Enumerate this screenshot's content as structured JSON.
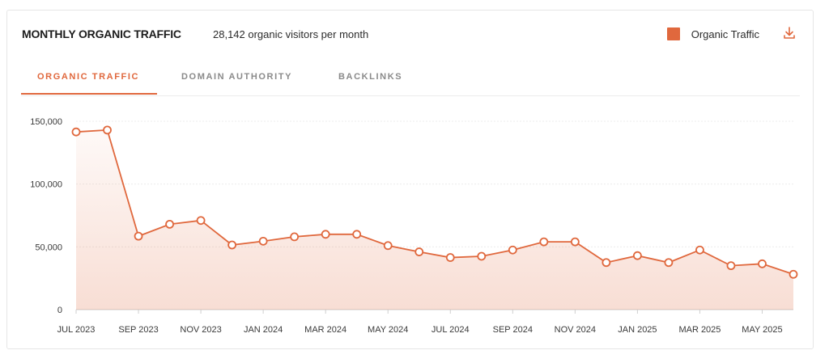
{
  "header": {
    "title": "MONTHLY ORGANIC TRAFFIC",
    "subtitle": "28,142 organic visitors per month",
    "legend_label": "Organic Traffic",
    "download_icon": "download-icon"
  },
  "tabs": [
    {
      "label": "ORGANIC TRAFFIC",
      "active": true
    },
    {
      "label": "DOMAIN AUTHORITY",
      "active": false
    },
    {
      "label": "BACKLINKS",
      "active": false
    }
  ],
  "colors": {
    "accent": "#e0683d",
    "grid": "#ececec",
    "axis": "#cfcfcf"
  },
  "chart_data": {
    "type": "area",
    "series": [
      {
        "name": "Organic Traffic",
        "values": [
          141500,
          143000,
          58500,
          68000,
          71000,
          51500,
          54500,
          58000,
          60000,
          60000,
          51000,
          46000,
          41500,
          42500,
          47500,
          54000,
          54000,
          37500,
          43000,
          37500,
          47500,
          35000,
          36500,
          28142
        ]
      }
    ],
    "x": [
      "JUL 2023",
      "AUG 2023",
      "SEP 2023",
      "OCT 2023",
      "NOV 2023",
      "DEC 2023",
      "JAN 2024",
      "FEB 2024",
      "MAR 2024",
      "APR 2024",
      "MAY 2024",
      "JUN 2024",
      "JUL 2024",
      "AUG 2024",
      "SEP 2024",
      "OCT 2024",
      "NOV 2024",
      "DEC 2024",
      "JAN 2025",
      "FEB 2025",
      "MAR 2025",
      "APR 2025",
      "MAY 2025",
      "JUN 2025"
    ],
    "x_tick_labels": [
      "JUL 2023",
      "SEP 2023",
      "NOV 2023",
      "JAN 2024",
      "MAR 2024",
      "MAY 2024",
      "JUL 2024",
      "SEP 2024",
      "NOV 2024",
      "JAN 2025",
      "MAR 2025",
      "MAY 2025"
    ],
    "y_ticks": [
      0,
      50000,
      100000,
      150000
    ],
    "y_tick_labels": [
      "0",
      "50,000",
      "100,000",
      "150,000"
    ],
    "ylim": [
      0,
      150000
    ],
    "grid": true
  }
}
